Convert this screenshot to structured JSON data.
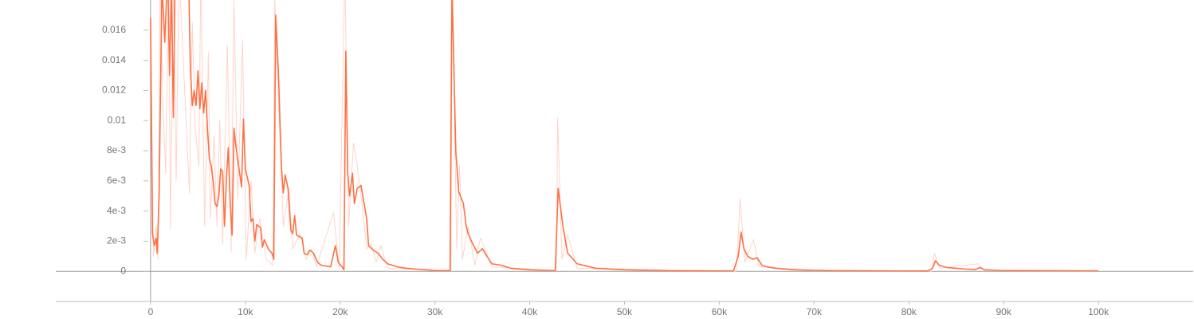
{
  "chart_data": {
    "type": "line",
    "xlim": [
      -10000,
      110000
    ],
    "ylim": [
      -0.002,
      0.018
    ],
    "xticks": [
      0,
      {
        "value": 10000,
        "label": "10k"
      },
      {
        "value": 20000,
        "label": "20k"
      },
      {
        "value": 30000,
        "label": "30k"
      },
      {
        "value": 40000,
        "label": "40k"
      },
      {
        "value": 50000,
        "label": "50k"
      },
      {
        "value": 60000,
        "label": "60k"
      },
      {
        "value": 70000,
        "label": "70k"
      },
      {
        "value": 80000,
        "label": "80k"
      },
      {
        "value": 90000,
        "label": "90k"
      },
      {
        "value": 100000,
        "label": "100k"
      }
    ],
    "yticks": [
      0,
      {
        "value": 0.002,
        "label": "2e-3"
      },
      {
        "value": 0.004,
        "label": "4e-3"
      },
      {
        "value": 0.006,
        "label": "6e-3"
      },
      {
        "value": 0.008,
        "label": "8e-3"
      },
      0.01,
      0.012,
      0.014,
      0.016
    ],
    "series": [
      {
        "color": "#fdd5ca",
        "x": [
          0,
          300,
          600,
          800,
          1000,
          1300,
          1600,
          1900,
          2100,
          2400,
          2700,
          3000,
          4100,
          4400,
          4700,
          5100,
          5300,
          5700,
          6100,
          6300,
          6700,
          7000,
          7300,
          7600,
          8100,
          8500,
          8800,
          9200,
          9700,
          10100,
          10600,
          11000,
          11500,
          12200,
          12900,
          13100,
          13600,
          14000,
          14600,
          15000,
          15800,
          16400,
          17000,
          17500,
          19300,
          19900,
          20500,
          20900,
          21400,
          21700,
          22300,
          22800,
          23300,
          23800,
          24300,
          25000,
          31700,
          31800,
          32300,
          32600,
          32900,
          33500,
          34200,
          34800,
          36000,
          42800,
          42950,
          43400,
          44000,
          45000,
          61800,
          62200,
          62700,
          63600,
          64200,
          70000,
          82400,
          82700,
          83300,
          87300,
          88000,
          100000
        ],
        "values": [
          0.0168,
          0.001,
          0.003,
          0.0008,
          0.02,
          0.011,
          0.0065,
          0.02,
          0.0028,
          0.02,
          0.006,
          0.02,
          0.0052,
          0.0165,
          0.0095,
          0.007,
          0.02,
          0.003,
          0.0145,
          0.0035,
          0.009,
          0.003,
          0.01,
          0.0018,
          0.015,
          0.0013,
          0.018,
          0.0048,
          0.0153,
          0.0008,
          0.006,
          0.0012,
          0.0035,
          0.0008,
          0.0004,
          0.018,
          0.0095,
          0.003,
          0.0055,
          0.0015,
          0.0025,
          0.0008,
          0.0015,
          0.0003,
          0.0039,
          0.0002,
          0.02,
          0.003,
          0.0085,
          0.0075,
          0.0045,
          0.0015,
          0.0018,
          0.0006,
          0.0017,
          0.0002,
          4e-05,
          0.02,
          0.0015,
          0.007,
          0.0008,
          0.003,
          0.0004,
          0.0022,
          0.0003,
          3e-05,
          0.0102,
          0.0008,
          0.0024,
          0.0002,
          2e-05,
          0.0048,
          0.0006,
          0.0021,
          0.0003,
          5e-05,
          2e-05,
          0.0012,
          0.0002,
          0.0005,
          4e-05,
          2e-05
        ]
      },
      {
        "color": "#ff7043",
        "x": [
          0,
          200,
          400,
          600,
          700,
          900,
          1200,
          1500,
          1800,
          2000,
          2200,
          2400,
          2600,
          4000,
          4200,
          4400,
          4600,
          4800,
          5000,
          5200,
          5400,
          5600,
          5800,
          6000,
          6200,
          6400,
          6600,
          6800,
          7000,
          7200,
          7400,
          7600,
          7800,
          8000,
          8200,
          8400,
          8600,
          8800,
          9000,
          9600,
          9800,
          10000,
          10400,
          10600,
          10800,
          11000,
          11200,
          11600,
          11800,
          12000,
          12400,
          12800,
          13000,
          13200,
          13500,
          13800,
          14000,
          14200,
          14500,
          14800,
          15000,
          15200,
          15400,
          16000,
          16200,
          16500,
          16800,
          17200,
          17600,
          18000,
          19000,
          19500,
          19800,
          20200,
          20400,
          20600,
          20800,
          21000,
          21300,
          21500,
          21800,
          22200,
          22800,
          23000,
          23500,
          24000,
          24500,
          25000,
          26000,
          27000,
          28000,
          29000,
          30000,
          31600,
          31800,
          32200,
          32500,
          33000,
          33300,
          33500,
          34000,
          34500,
          35000,
          35500,
          36000,
          37000,
          38000,
          40000,
          42700,
          43000,
          43500,
          44000,
          45000,
          47000,
          50000,
          55000,
          61500,
          62000,
          62300,
          62600,
          63000,
          63500,
          64000,
          64500,
          65000,
          66000,
          68000,
          72000,
          82000,
          82500,
          82800,
          83200,
          84000,
          85000,
          86000,
          87000,
          87500,
          88000,
          90000,
          100000
        ],
        "values": [
          0.0168,
          0.0025,
          0.0017,
          0.0022,
          0.0012,
          0.005,
          0.019,
          0.0152,
          0.02,
          0.013,
          0.019,
          0.0102,
          0.02,
          0.02,
          0.0135,
          0.011,
          0.012,
          0.011,
          0.0133,
          0.0108,
          0.0125,
          0.0105,
          0.012,
          0.0095,
          0.0075,
          0.007,
          0.006,
          0.0045,
          0.0043,
          0.005,
          0.0068,
          0.0066,
          0.003,
          0.0062,
          0.0082,
          0.0045,
          0.0024,
          0.0095,
          0.0083,
          0.0056,
          0.0101,
          0.0068,
          0.0057,
          0.0033,
          0.0035,
          0.002,
          0.0031,
          0.0029,
          0.0016,
          0.0021,
          0.0015,
          0.0012,
          0.0008,
          0.017,
          0.013,
          0.007,
          0.0052,
          0.0064,
          0.0055,
          0.0027,
          0.0025,
          0.0037,
          0.0024,
          0.0022,
          0.0012,
          0.0011,
          0.0014,
          0.0012,
          0.0006,
          0.0004,
          0.0003,
          0.0017,
          0.0006,
          0.0003,
          0.0001,
          0.0146,
          0.0065,
          0.005,
          0.0065,
          0.0045,
          0.0055,
          0.0057,
          0.0035,
          0.0017,
          0.0014,
          0.0012,
          0.0008,
          0.0005,
          0.0003,
          0.0002,
          0.00015,
          0.0001,
          5e-05,
          5e-05,
          0.019,
          0.008,
          0.0053,
          0.0045,
          0.003,
          0.0025,
          0.0018,
          0.0012,
          0.0015,
          0.001,
          0.0005,
          0.0004,
          0.0002,
          0.0001,
          5e-05,
          0.0055,
          0.003,
          0.0012,
          0.0005,
          0.0002,
          0.0001,
          3e-05,
          3e-05,
          0.001,
          0.0026,
          0.0015,
          0.001,
          0.0008,
          0.0009,
          0.0004,
          0.0003,
          0.0002,
          0.0001,
          4e-05,
          2e-05,
          0.0002,
          0.0007,
          0.0004,
          0.00025,
          0.0002,
          0.00015,
          0.00012,
          0.00025,
          0.0001,
          5e-05,
          3e-05
        ]
      }
    ]
  }
}
